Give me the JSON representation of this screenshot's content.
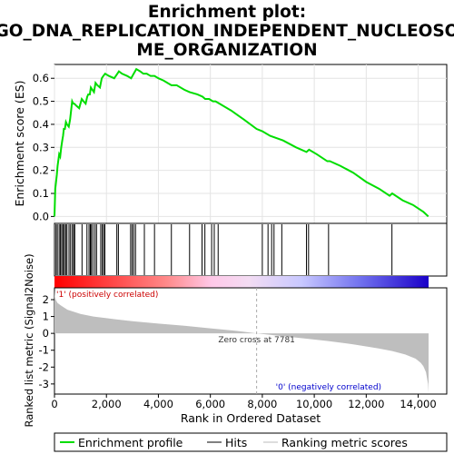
{
  "chart_data": {
    "type": "line",
    "title_lines": [
      "Enrichment plot:",
      "GO_DNA_REPLICATION_INDEPENDENT_NUCLEOSO",
      "ME_ORGANIZATION"
    ],
    "xlabel": "Rank in Ordered Dataset",
    "es_ylabel": "Enrichment score (ES)",
    "metric_ylabel": "Ranked list metric (Signal2Noise)",
    "xlim": [
      0,
      14500
    ],
    "x_ticks": [
      0,
      2000,
      4000,
      6000,
      8000,
      10000,
      12000,
      14000
    ],
    "x_tick_labels": [
      "0",
      "2,000",
      "4,000",
      "6,000",
      "8,000",
      "10,000",
      "12,000",
      "14,000"
    ],
    "es_ylim": [
      -0.03,
      0.66
    ],
    "es_ticks": [
      0.0,
      0.1,
      0.2,
      0.3,
      0.4,
      0.5,
      0.6
    ],
    "es_tick_labels": [
      "0.0",
      "0.1",
      "0.2",
      "0.3",
      "0.4",
      "0.5",
      "0.6"
    ],
    "metric_ylim": [
      -3.6,
      2.7
    ],
    "metric_ticks": [
      2,
      1,
      0,
      -1,
      -2,
      -3
    ],
    "metric_tick_labels": [
      "2",
      "1",
      "0",
      "-1",
      "-2",
      "-3"
    ],
    "es_profile": {
      "name": "Enrichment profile",
      "color": "#00dd00",
      "x": [
        0,
        30,
        60,
        90,
        120,
        180,
        220,
        260,
        300,
        330,
        360,
        400,
        440,
        480,
        550,
        600,
        680,
        720,
        760,
        850,
        950,
        1050,
        1120,
        1200,
        1260,
        1300,
        1360,
        1400,
        1460,
        1520,
        1580,
        1650,
        1750,
        1820,
        1880,
        1950,
        2100,
        2300,
        2420,
        2480,
        2600,
        2800,
        2950,
        3050,
        3150,
        3300,
        3420,
        3550,
        3700,
        3850,
        4000,
        4200,
        4500,
        4700,
        5000,
        5200,
        5500,
        5700,
        5800,
        5950,
        6100,
        6200,
        6350,
        6800,
        7300,
        7781,
        8000,
        8300,
        8800,
        9300,
        9700,
        9800,
        10100,
        10500,
        10600,
        11000,
        11500,
        12000,
        12500,
        12900,
        13000,
        13400,
        13800,
        14200,
        14390
      ],
      "y": [
        0.0,
        0.12,
        0.15,
        0.18,
        0.22,
        0.27,
        0.26,
        0.3,
        0.33,
        0.35,
        0.38,
        0.38,
        0.41,
        0.4,
        0.39,
        0.42,
        0.5,
        0.49,
        0.49,
        0.48,
        0.47,
        0.51,
        0.5,
        0.49,
        0.52,
        0.53,
        0.53,
        0.56,
        0.55,
        0.54,
        0.58,
        0.57,
        0.56,
        0.6,
        0.61,
        0.62,
        0.61,
        0.6,
        0.62,
        0.63,
        0.62,
        0.61,
        0.6,
        0.62,
        0.64,
        0.63,
        0.62,
        0.62,
        0.61,
        0.61,
        0.6,
        0.59,
        0.57,
        0.57,
        0.55,
        0.54,
        0.53,
        0.52,
        0.51,
        0.51,
        0.5,
        0.5,
        0.49,
        0.46,
        0.42,
        0.38,
        0.37,
        0.35,
        0.33,
        0.3,
        0.28,
        0.29,
        0.27,
        0.24,
        0.24,
        0.22,
        0.19,
        0.15,
        0.12,
        0.09,
        0.1,
        0.07,
        0.05,
        0.02,
        0.0
      ]
    },
    "hits": {
      "name": "Hits",
      "x": [
        60,
        110,
        180,
        230,
        280,
        330,
        380,
        430,
        480,
        560,
        620,
        690,
        740,
        780,
        1060,
        1250,
        1330,
        1380,
        1420,
        1480,
        1560,
        1620,
        1780,
        1840,
        1890,
        1940,
        2400,
        2460,
        2930,
        2990,
        3050,
        3120,
        3460,
        3850,
        4500,
        5200,
        5680,
        5790,
        6050,
        6150,
        6300,
        8000,
        8220,
        8360,
        8450,
        8750,
        9700,
        9780,
        10550,
        12990
      ]
    },
    "metric": {
      "name": "Ranking metric scores",
      "x": [
        0,
        20,
        60,
        120,
        250,
        500,
        1000,
        1500,
        2000,
        3000,
        4000,
        5000,
        6000,
        7000,
        7781,
        8500,
        9500,
        10500,
        11500,
        12500,
        13000,
        13500,
        13900,
        14100,
        14200,
        14300,
        14380,
        14400
      ],
      "y": [
        2.6,
        2.15,
        1.95,
        1.8,
        1.65,
        1.4,
        1.15,
        1.0,
        0.9,
        0.72,
        0.58,
        0.45,
        0.3,
        0.15,
        0.0,
        -0.12,
        -0.28,
        -0.45,
        -0.65,
        -0.9,
        -1.05,
        -1.25,
        -1.5,
        -1.75,
        -1.95,
        -2.3,
        -3.0,
        -3.5
      ]
    },
    "zero_cross_label": "Zero cross at 7781",
    "zero_cross_x": 7781,
    "pos_label": "'1' (positively correlated)",
    "neg_label": "'0' (negatively correlated)",
    "legend": [
      "Enrichment profile",
      "Hits",
      "Ranking metric scores"
    ]
  }
}
